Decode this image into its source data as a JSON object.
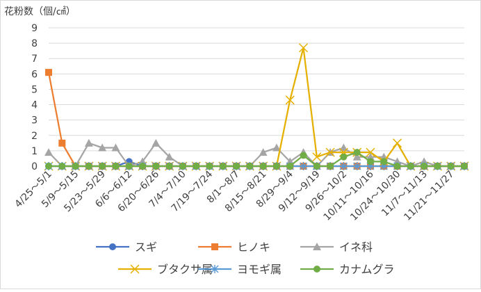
{
  "chart_data": {
    "type": "line",
    "title": "",
    "ylabel": "花粉数（個/㎠）",
    "xlabel": "",
    "ylim": [
      0,
      9
    ],
    "yticks": [
      0,
      1,
      2,
      3,
      4,
      5,
      6,
      7,
      8,
      9
    ],
    "grid": true,
    "legend_position": "bottom",
    "x": [
      "4/25～5/1",
      "5/2～5/8",
      "5/9～5/15",
      "5/16～5/22",
      "5/23～5/29",
      "5/30～6/5",
      "6/6～6/12",
      "6/13～6/19",
      "6/20～6/26",
      "6/27～7/3",
      "7/4～7/10",
      "7/11～7/17",
      "7/19～7/24",
      "7/25～7/31",
      "8/1～8/7",
      "8/8～8/14",
      "8/15～8/21",
      "8/22～8/28",
      "8/29～9/4",
      "9/5～9/11",
      "9/12～9/19",
      "9/20～9/25",
      "9/26～10/2",
      "10/3～10/9",
      "10/11～10/16",
      "10/17～10/23",
      "10/24～10/30",
      "10/31～11/6",
      "11/7～11/13",
      "11/14～11/20",
      "11/21～11/27",
      "11/28～12/4"
    ],
    "x_tick_labels_shown": [
      "4/25～5/1",
      "5/9～5/15",
      "5/23～5/29",
      "6/6～6/12",
      "6/20～6/26",
      "7/4～7/10",
      "7/19～7/24",
      "8/1～8/7",
      "8/15～8/21",
      "8/29～9/4",
      "9/12～9/19",
      "9/26～10/2",
      "10/11～10/16",
      "10/24～10/30",
      "11/7～11/13",
      "11/21～11/27"
    ],
    "series": [
      {
        "name": "スギ",
        "color": "#4472C4",
        "marker": "circle",
        "values": [
          0,
          0,
          0,
          0,
          0,
          0,
          0.3,
          0,
          0,
          0,
          0,
          0,
          0,
          0,
          0,
          0,
          0,
          0,
          0,
          0,
          0,
          0,
          0,
          0,
          0,
          0,
          0,
          0,
          0,
          0,
          0,
          0
        ]
      },
      {
        "name": "ヒノキ",
        "color": "#ED7D31",
        "marker": "square",
        "values": [
          6.1,
          1.5,
          0,
          0,
          0,
          0,
          0,
          0,
          0,
          0,
          0,
          0,
          0,
          0,
          0,
          0,
          0,
          0,
          0,
          0,
          0,
          0,
          0,
          0,
          0,
          0,
          0,
          0,
          0,
          0,
          0,
          0
        ]
      },
      {
        "name": "イネ科",
        "color": "#A5A5A5",
        "marker": "triangle",
        "values": [
          0.9,
          0,
          0,
          1.5,
          1.2,
          1.2,
          0,
          0.3,
          1.5,
          0.6,
          0,
          0,
          0,
          0,
          0,
          0,
          0.9,
          1.2,
          0.3,
          0.9,
          0,
          0.9,
          1.2,
          0.6,
          0.6,
          0.6,
          0.3,
          0,
          0.3,
          0,
          0,
          0
        ]
      },
      {
        "name": "ブタクサ属",
        "color": "#E5B000",
        "marker": "x",
        "values": [
          0,
          0,
          0,
          0,
          0,
          0,
          0,
          0,
          0,
          0,
          0,
          0,
          0,
          0,
          0,
          0,
          0,
          0,
          4.3,
          7.7,
          0.6,
          0.9,
          0.9,
          0.9,
          0.9,
          0.3,
          1.5,
          0,
          0,
          0,
          0,
          0
        ]
      },
      {
        "name": "ヨモギ属",
        "color": "#5B9BD5",
        "marker": "asterisk",
        "values": [
          0,
          0,
          0,
          0,
          0,
          0,
          0,
          0,
          0,
          0,
          0,
          0,
          0,
          0,
          0,
          0,
          0,
          0,
          0,
          0,
          0,
          0,
          0,
          0,
          0,
          0,
          0,
          0,
          0,
          0,
          0,
          0
        ]
      },
      {
        "name": "カナムグラ",
        "color": "#70AD47",
        "marker": "circle",
        "values": [
          0,
          0,
          0,
          0,
          0,
          0,
          0,
          0,
          0,
          0,
          0,
          0,
          0,
          0,
          0,
          0,
          0,
          0,
          0,
          0.7,
          0,
          0,
          0.6,
          0.9,
          0.3,
          0.3,
          0,
          0,
          0,
          0,
          0,
          0
        ]
      }
    ]
  }
}
